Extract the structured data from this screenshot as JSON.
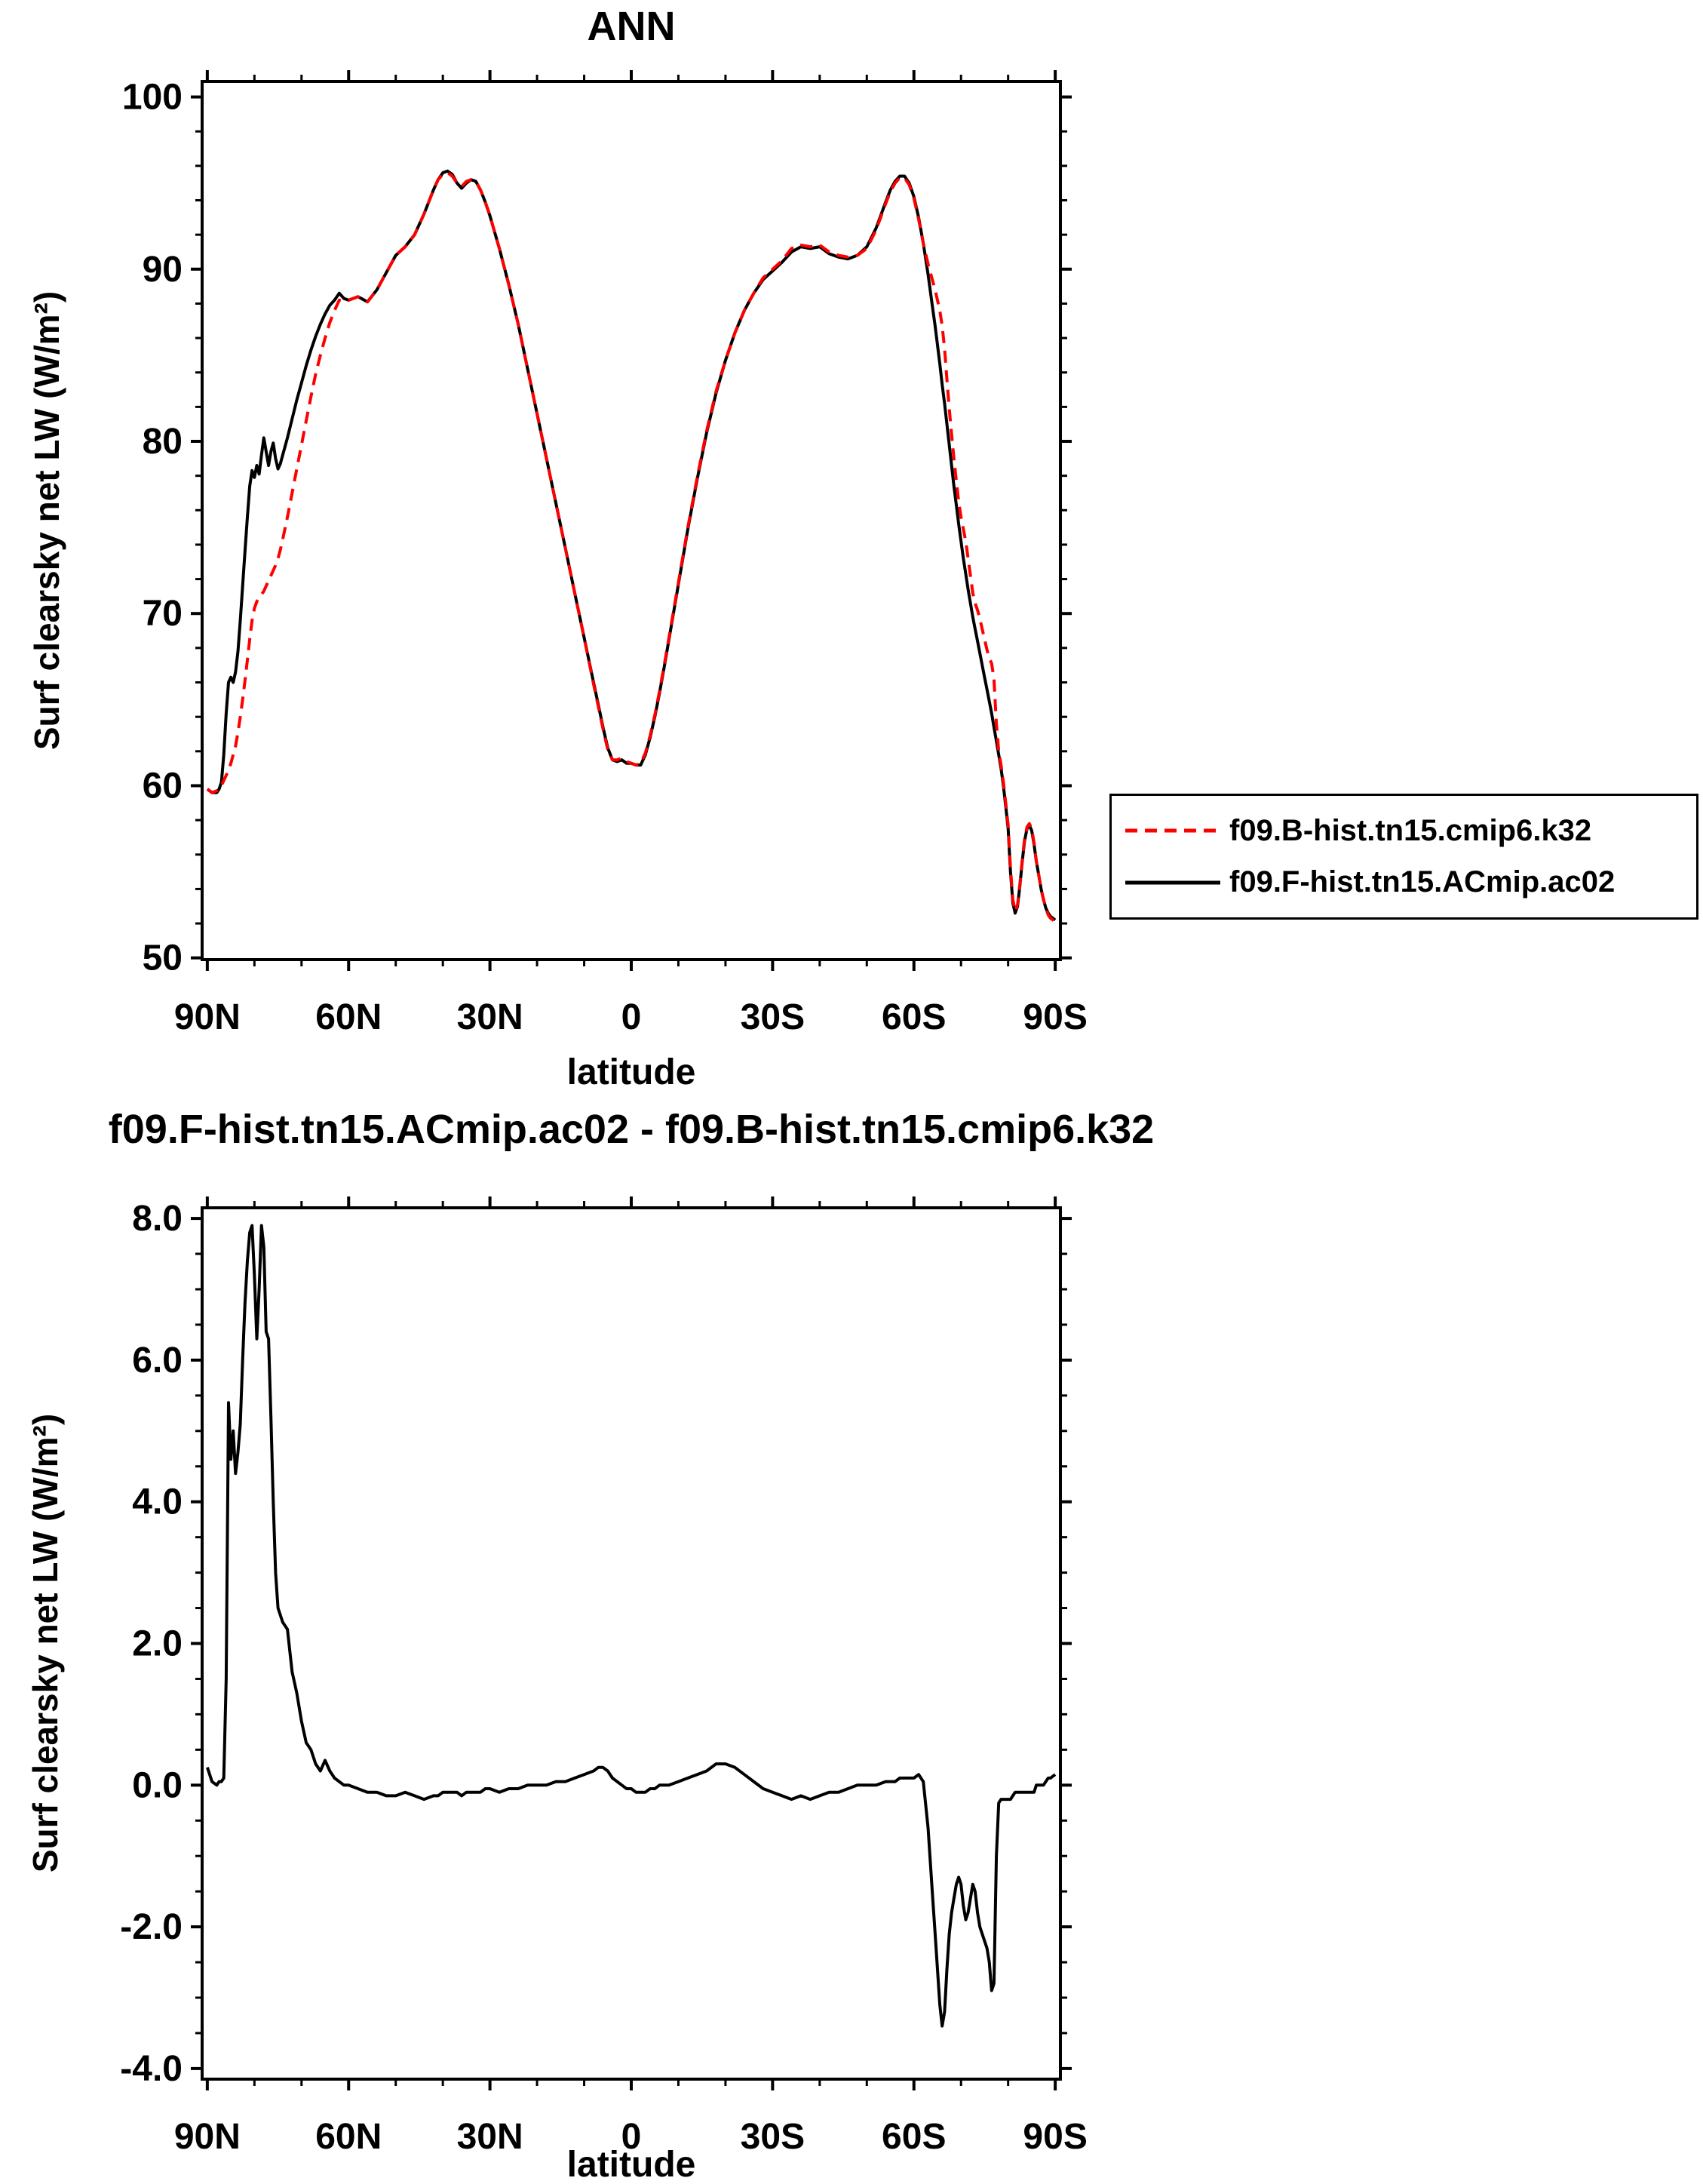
{
  "page": {
    "background": "#ffffff",
    "text_color": "#000000"
  },
  "top_chart": {
    "title": "ANN",
    "ylabel": "Surf clearsky net LW (W/m²)",
    "xlabel": "latitude",
    "legend": [
      {
        "label": "f09.B-hist.tn15.cmip6.k32",
        "color": "#ff0000",
        "style": "dashed"
      },
      {
        "label": "f09.F-hist.tn15.ACmip.ac02",
        "color": "#000000",
        "style": "solid"
      }
    ]
  },
  "bottom_chart": {
    "title": "f09.F-hist.tn15.ACmip.ac02 - f09.B-hist.tn15.cmip6.k32",
    "ylabel": "Surf clearsky net LW (W/m²)",
    "xlabel": "latitude"
  },
  "latitudes_deg_north": [
    90,
    89,
    88,
    87.5,
    87,
    86.5,
    86,
    85.5,
    85,
    84.5,
    84,
    83.5,
    83,
    82.5,
    82,
    81.5,
    81,
    80.5,
    80,
    79.5,
    79,
    78.5,
    78,
    77.5,
    77,
    76.5,
    76,
    75.5,
    75,
    74.5,
    74,
    73,
    72,
    71,
    70,
    69,
    68,
    67,
    66,
    65,
    64,
    63,
    62,
    61,
    60,
    58,
    56,
    54,
    52,
    50,
    48,
    46,
    44,
    42,
    41,
    40,
    39,
    38,
    37,
    36,
    35,
    34,
    33,
    32,
    31,
    30,
    28,
    26,
    24,
    22,
    20,
    18,
    16,
    14,
    12,
    10,
    8,
    7,
    6,
    5,
    4,
    3,
    2,
    1,
    0,
    -1,
    -2,
    -3,
    -4,
    -5,
    -6,
    -7,
    -8,
    -10,
    -12,
    -14,
    -16,
    -18,
    -20,
    -22,
    -24,
    -26,
    -28,
    -30,
    -32,
    -34,
    -36,
    -38,
    -40,
    -42,
    -44,
    -46,
    -48,
    -50,
    -52,
    -54,
    -55,
    -56,
    -57,
    -58,
    -59,
    -60,
    -61,
    -62,
    -63,
    -64,
    -64.5,
    -65,
    -65.5,
    -66,
    -66.5,
    -67,
    -67.5,
    -68,
    -68.5,
    -69,
    -69.5,
    -70,
    -70.5,
    -71,
    -71.5,
    -72,
    -72.5,
    -73,
    -73.5,
    -74,
    -74.5,
    -75,
    -75.5,
    -76,
    -76.5,
    -77,
    -77.5,
    -78,
    -78.5,
    -79,
    -79.5,
    -80,
    -80.5,
    -81,
    -81.5,
    -82,
    -82.5,
    -83,
    -83.5,
    -84,
    -84.5,
    -85,
    -85.5,
    -86,
    -86.5,
    -87,
    -87.5,
    -88,
    -88.5,
    -89,
    -90
  ],
  "chart_data": [
    {
      "type": "line",
      "title": "ANN",
      "xlabel": "latitude",
      "ylabel": "Surf clearsky net LW (W/m2)",
      "xlim_draw": [
        91.1,
        -91.1
      ],
      "ylim_draw": [
        49.9,
        100.9
      ],
      "xticks": {
        "values": [
          90,
          60,
          30,
          0,
          -30,
          -60,
          -90
        ],
        "labels": [
          "90N",
          "60N",
          "30N",
          "0",
          "30S",
          "60S",
          "90S"
        ]
      },
      "yticks": {
        "values": [
          50,
          60,
          70,
          80,
          90,
          100
        ],
        "labels": [
          "50",
          "60",
          "70",
          "80",
          "90",
          "100"
        ]
      },
      "xminor_range": [
        90,
        -90
      ],
      "xminor_step": 10,
      "yminor_range": [
        50,
        100
      ],
      "yminor_step": 2,
      "series": [
        {
          "name": "f09.F-hist.tn15.ACmip.ac02",
          "color": "#000000",
          "dash": null,
          "values": [
            59.8,
            59.6,
            59.6,
            59.8,
            60.2,
            61.8,
            64.2,
            66.0,
            66.3,
            66.0,
            66.6,
            67.8,
            69.6,
            71.6,
            73.6,
            75.6,
            77.4,
            78.3,
            77.9,
            78.6,
            78.1,
            79.2,
            80.2,
            79.4,
            78.6,
            79.4,
            79.9,
            79.0,
            78.4,
            78.7,
            79.2,
            80.2,
            81.3,
            82.4,
            83.4,
            84.4,
            85.3,
            86.1,
            86.8,
            87.4,
            87.9,
            88.2,
            88.6,
            88.3,
            88.2,
            88.4,
            88.1,
            88.8,
            89.8,
            90.8,
            91.3,
            92.0,
            93.2,
            94.6,
            95.2,
            95.6,
            95.7,
            95.5,
            95.0,
            94.7,
            95.0,
            95.2,
            95.1,
            94.6,
            93.9,
            93.1,
            91.2,
            89.1,
            86.8,
            84.2,
            81.6,
            79.0,
            76.4,
            73.8,
            71.2,
            68.6,
            66.0,
            64.7,
            63.4,
            62.2,
            61.5,
            61.4,
            61.5,
            61.3,
            61.3,
            61.2,
            61.2,
            61.8,
            62.8,
            64.0,
            65.4,
            66.9,
            68.5,
            71.7,
            74.9,
            77.8,
            80.5,
            82.8,
            84.7,
            86.3,
            87.6,
            88.6,
            89.4,
            89.9,
            90.4,
            91.0,
            91.3,
            91.2,
            91.3,
            90.9,
            90.7,
            90.6,
            90.8,
            91.3,
            92.4,
            93.9,
            94.6,
            95.1,
            95.4,
            95.4,
            95.0,
            94.2,
            93.0,
            91.5,
            89.7,
            87.7,
            86.7,
            85.6,
            84.5,
            83.3,
            82.2,
            81.0,
            79.8,
            78.6,
            77.4,
            76.3,
            75.2,
            74.2,
            73.2,
            72.3,
            71.4,
            70.6,
            69.8,
            69.1,
            68.4,
            67.7,
            67.0,
            66.3,
            65.6,
            64.9,
            64.2,
            63.4,
            62.6,
            61.8,
            61.0,
            60.0,
            58.8,
            57.5,
            55.0,
            53.2,
            52.6,
            53.0,
            54.2,
            55.6,
            56.8,
            57.5,
            57.7,
            57.4,
            56.6,
            55.6,
            54.8,
            54.0,
            53.4,
            52.9,
            52.6,
            52.4,
            52.2
          ]
        },
        {
          "name": "f09.B-hist.tn15.cmip6.k32",
          "color": "#ff0000",
          "dash": [
            16,
            10
          ],
          "values": [
            59.8,
            59.6,
            59.7,
            59.8,
            60.0,
            60.3,
            60.6,
            60.9,
            61.3,
            61.8,
            62.3,
            63.1,
            64.0,
            65.0,
            66.1,
            67.3,
            68.5,
            69.6,
            70.3,
            70.7,
            70.9,
            71.1,
            71.3,
            71.6,
            71.9,
            72.2,
            72.5,
            72.8,
            73.2,
            73.7,
            74.3,
            75.6,
            77.0,
            78.4,
            79.8,
            81.2,
            82.6,
            83.9,
            85.0,
            86.0,
            86.9,
            87.6,
            88.2,
            88.2,
            88.2,
            88.4,
            88.1,
            88.8,
            89.8,
            90.8,
            91.3,
            92.0,
            93.2,
            94.6,
            95.2,
            95.5,
            95.6,
            95.4,
            95.0,
            94.8,
            95.1,
            95.2,
            95.1,
            94.6,
            93.9,
            93.1,
            91.2,
            89.1,
            86.8,
            84.2,
            81.6,
            79.0,
            76.4,
            73.8,
            71.2,
            68.6,
            65.9,
            64.6,
            63.3,
            62.1,
            61.5,
            61.5,
            61.6,
            61.4,
            61.3,
            61.2,
            61.3,
            61.9,
            62.9,
            64.1,
            65.5,
            67.0,
            68.6,
            71.8,
            75.0,
            77.9,
            80.6,
            82.9,
            84.7,
            86.3,
            87.6,
            88.6,
            89.5,
            90.0,
            90.5,
            91.2,
            91.4,
            91.3,
            91.4,
            91.0,
            90.8,
            90.7,
            90.8,
            91.2,
            92.3,
            93.8,
            94.5,
            95.0,
            95.3,
            95.3,
            94.9,
            94.1,
            92.9,
            91.5,
            90.3,
            89.3,
            88.8,
            88.2,
            87.6,
            86.7,
            85.4,
            83.6,
            81.9,
            80.4,
            79.0,
            77.7,
            76.5,
            75.6,
            74.9,
            74.2,
            73.2,
            72.2,
            71.2,
            70.6,
            70.2,
            69.7,
            69.1,
            68.5,
            67.9,
            67.4,
            67.1,
            66.2,
            63.6,
            62.0,
            61.2,
            60.2,
            59.0,
            57.7,
            55.2,
            53.4,
            52.7,
            53.1,
            54.3,
            55.7,
            56.9,
            57.6,
            57.8,
            57.5,
            56.7,
            55.6,
            54.8,
            54.0,
            53.4,
            52.9,
            52.5,
            52.3,
            52.1
          ]
        }
      ]
    },
    {
      "type": "line",
      "title": "f09.F-hist.tn15.ACmip.ac02 - f09.B-hist.tn15.cmip6.k32",
      "xlabel": "latitude",
      "ylabel": "Surf clearsky net LW (W/m2)",
      "xlim_draw": [
        91.1,
        -91.1
      ],
      "ylim_draw": [
        -4.15,
        8.15
      ],
      "xticks": {
        "values": [
          90,
          60,
          30,
          0,
          -30,
          -60,
          -90
        ],
        "labels": [
          "90N",
          "60N",
          "30N",
          "0",
          "30S",
          "60S",
          "90S"
        ]
      },
      "yticks": {
        "values": [
          -4,
          -2,
          0,
          2,
          4,
          6,
          8
        ],
        "labels": [
          "-4.0",
          "-2.0",
          "0.0",
          "2.0",
          "4.0",
          "6.0",
          "8.0"
        ]
      },
      "xminor_range": [
        90,
        -90
      ],
      "xminor_step": 10,
      "yminor_range": [
        -4,
        8
      ],
      "yminor_step": 0.5,
      "series": [
        {
          "name": "f09.F-hist.tn15.ACmip.ac02 - f09.B-hist.tn15.cmip6.k32",
          "color": "#000000",
          "dash": null,
          "values": [
            0.25,
            0.05,
            0.0,
            0.05,
            0.05,
            0.1,
            1.5,
            5.4,
            4.6,
            5.0,
            4.4,
            4.7,
            5.1,
            6.0,
            6.8,
            7.4,
            7.8,
            7.9,
            7.2,
            6.3,
            7.0,
            7.9,
            7.6,
            6.4,
            6.3,
            5.2,
            4.0,
            3.0,
            2.5,
            2.4,
            2.3,
            2.2,
            1.6,
            1.3,
            0.9,
            0.6,
            0.5,
            0.3,
            0.2,
            0.35,
            0.2,
            0.1,
            0.05,
            0.0,
            0.0,
            -0.05,
            -0.1,
            -0.1,
            -0.15,
            -0.15,
            -0.1,
            -0.15,
            -0.2,
            -0.15,
            -0.15,
            -0.1,
            -0.1,
            -0.1,
            -0.1,
            -0.15,
            -0.1,
            -0.1,
            -0.1,
            -0.1,
            -0.05,
            -0.05,
            -0.1,
            -0.05,
            -0.05,
            0.0,
            0.0,
            0.0,
            0.05,
            0.05,
            0.1,
            0.15,
            0.2,
            0.25,
            0.25,
            0.2,
            0.1,
            0.05,
            0.0,
            -0.05,
            -0.05,
            -0.1,
            -0.1,
            -0.1,
            -0.05,
            -0.05,
            0.0,
            0.0,
            0.0,
            0.05,
            0.1,
            0.15,
            0.2,
            0.3,
            0.3,
            0.25,
            0.15,
            0.05,
            -0.05,
            -0.1,
            -0.15,
            -0.2,
            -0.15,
            -0.2,
            -0.15,
            -0.1,
            -0.1,
            -0.05,
            0.0,
            0.0,
            0.0,
            0.05,
            0.05,
            0.05,
            0.1,
            0.1,
            0.1,
            0.1,
            0.15,
            0.05,
            -0.6,
            -1.6,
            -2.1,
            -2.6,
            -3.1,
            -3.4,
            -3.2,
            -2.6,
            -2.1,
            -1.8,
            -1.6,
            -1.4,
            -1.3,
            -1.4,
            -1.7,
            -1.9,
            -1.8,
            -1.6,
            -1.4,
            -1.5,
            -1.8,
            -2.0,
            -2.1,
            -2.2,
            -2.3,
            -2.5,
            -2.9,
            -2.8,
            -1.0,
            -0.25,
            -0.2,
            -0.2,
            -0.2,
            -0.2,
            -0.2,
            -0.15,
            -0.1,
            -0.1,
            -0.1,
            -0.1,
            -0.1,
            -0.1,
            -0.1,
            -0.1,
            -0.1,
            0.0,
            0.0,
            0.0,
            0.0,
            0.05,
            0.1,
            0.1,
            0.15
          ]
        }
      ]
    }
  ]
}
